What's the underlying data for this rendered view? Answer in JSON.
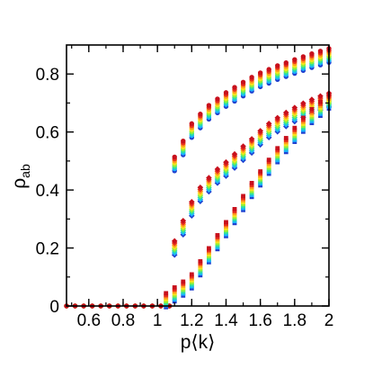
{
  "chart_data": {
    "type": "scatter",
    "title": "",
    "xlabel": "p⟨k⟩",
    "ylabel_main": "ρ",
    "ylabel_sub": "ab",
    "xlim": [
      0.47,
      2.0
    ],
    "ylim": [
      0.0,
      0.9
    ],
    "x_ticks": [
      0.6,
      0.8,
      1,
      1.2,
      1.4,
      1.6,
      1.8,
      2
    ],
    "x_tick_labels": [
      "0.6",
      "0.8",
      "1",
      "1.2",
      "1.4",
      "1.6",
      "1.8",
      "2"
    ],
    "y_ticks": [
      0,
      0.2,
      0.4,
      0.6,
      0.8
    ],
    "y_tick_labels": [
      "0",
      "0.2",
      "0.4",
      "0.6",
      "0.8"
    ],
    "grid": false,
    "legend": "none",
    "colors": [
      "#1f3fcf",
      "#19b4ff",
      "#2ee0a0",
      "#8ff03a",
      "#f7e21c",
      "#ff9a1c",
      "#e8321c",
      "#c8101c"
    ],
    "series": [
      {
        "marker": "circle",
        "x": [
          0.47,
          0.52,
          0.57,
          0.62,
          0.67,
          0.72,
          0.77,
          0.82,
          0.87,
          0.92,
          0.97,
          1.02,
          1.07,
          1.1,
          1.15,
          1.2,
          1.25,
          1.3,
          1.35,
          1.4,
          1.45,
          1.5,
          1.55,
          1.6,
          1.65,
          1.7,
          1.75,
          1.8,
          1.85,
          1.9,
          1.95,
          2.0
        ],
        "values": [
          0,
          0,
          0,
          0,
          0,
          0,
          0,
          0,
          0,
          0,
          0,
          0,
          0,
          0.49,
          0.545,
          0.605,
          0.638,
          0.668,
          0.69,
          0.712,
          0.73,
          0.748,
          0.765,
          0.78,
          0.792,
          0.805,
          0.815,
          0.826,
          0.836,
          0.846,
          0.855,
          0.864
        ]
      },
      {
        "marker": "diamond",
        "x": [
          1.1,
          1.15,
          1.2,
          1.25,
          1.3,
          1.35,
          1.4,
          1.45,
          1.5,
          1.55,
          1.6,
          1.65,
          1.7,
          1.75,
          1.8,
          1.85,
          1.9,
          1.95,
          2.0
        ],
        "values": [
          0.2,
          0.27,
          0.335,
          0.385,
          0.418,
          0.448,
          0.472,
          0.5,
          0.527,
          0.552,
          0.58,
          0.605,
          0.625,
          0.643,
          0.66,
          0.675,
          0.688,
          0.7,
          0.71
        ]
      },
      {
        "marker": "square",
        "x": [
          1.05,
          1.1,
          1.15,
          1.2,
          1.25,
          1.3,
          1.35,
          1.4,
          1.45,
          1.5,
          1.55,
          1.6,
          1.65,
          1.7,
          1.75,
          1.8,
          1.85,
          1.9,
          1.95,
          2.0
        ],
        "values": [
          0.02,
          0.04,
          0.06,
          0.085,
          0.13,
          0.175,
          0.22,
          0.265,
          0.31,
          0.355,
          0.4,
          0.44,
          0.48,
          0.52,
          0.555,
          0.59,
          0.625,
          0.655,
          0.68,
          0.705
        ]
      }
    ]
  }
}
